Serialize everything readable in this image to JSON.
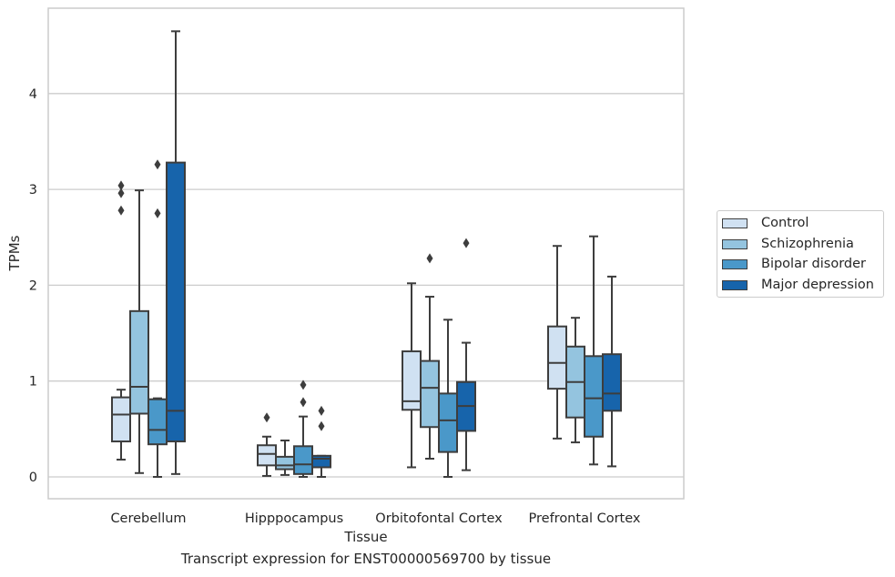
{
  "chart_data": {
    "type": "boxplot",
    "title": "",
    "caption": "Transcript expression for ENST00000569700 by tissue",
    "xlabel": "Tissue",
    "ylabel": "TPMs",
    "ylim": [
      -0.22,
      4.9
    ],
    "yticks": [
      0,
      1,
      2,
      3,
      4
    ],
    "grid": "horizontal",
    "legend_position": "right",
    "categories": [
      "Cerebellum",
      "Hipppocampus",
      "Orbitofontal Cortex",
      "Prefrontal Cortex"
    ],
    "series": [
      {
        "name": "Control",
        "color": "#d0e1f2",
        "boxes": [
          {
            "whislo": 0.18,
            "q1": 0.37,
            "med": 0.65,
            "q3": 0.83,
            "whishi": 0.91,
            "fliers": [
              2.78,
              2.96,
              3.04
            ]
          },
          {
            "whislo": 0.01,
            "q1": 0.12,
            "med": 0.24,
            "q3": 0.33,
            "whishi": 0.42,
            "fliers": [
              0.62
            ]
          },
          {
            "whislo": 0.1,
            "q1": 0.7,
            "med": 0.79,
            "q3": 1.31,
            "whishi": 2.02,
            "fliers": []
          },
          {
            "whislo": 0.4,
            "q1": 0.92,
            "med": 1.19,
            "q3": 1.57,
            "whishi": 2.41,
            "fliers": []
          }
        ]
      },
      {
        "name": "Schizophrenia",
        "color": "#94c4df",
        "boxes": [
          {
            "whislo": 0.04,
            "q1": 0.66,
            "med": 0.94,
            "q3": 1.73,
            "whishi": 2.99,
            "fliers": []
          },
          {
            "whislo": 0.02,
            "q1": 0.08,
            "med": 0.12,
            "q3": 0.21,
            "whishi": 0.38,
            "fliers": []
          },
          {
            "whislo": 0.19,
            "q1": 0.52,
            "med": 0.93,
            "q3": 1.21,
            "whishi": 1.88,
            "fliers": [
              2.28
            ]
          },
          {
            "whislo": 0.36,
            "q1": 0.62,
            "med": 0.99,
            "q3": 1.36,
            "whishi": 1.66,
            "fliers": []
          }
        ]
      },
      {
        "name": "Bipolar disorder",
        "color": "#4a98c9",
        "boxes": [
          {
            "whislo": 0.0,
            "q1": 0.34,
            "med": 0.49,
            "q3": 0.81,
            "whishi": 0.82,
            "fliers": [
              2.75,
              3.26
            ]
          },
          {
            "whislo": 0.0,
            "q1": 0.03,
            "med": 0.13,
            "q3": 0.32,
            "whishi": 0.63,
            "fliers": [
              0.78,
              0.96
            ]
          },
          {
            "whislo": 0.0,
            "q1": 0.26,
            "med": 0.59,
            "q3": 0.87,
            "whishi": 1.64,
            "fliers": []
          },
          {
            "whislo": 0.13,
            "q1": 0.42,
            "med": 0.82,
            "q3": 1.26,
            "whishi": 2.51,
            "fliers": []
          }
        ]
      },
      {
        "name": "Major depression",
        "color": "#1764ab",
        "boxes": [
          {
            "whislo": 0.03,
            "q1": 0.37,
            "med": 0.69,
            "q3": 3.28,
            "whishi": 4.65,
            "fliers": []
          },
          {
            "whislo": 0.0,
            "q1": 0.1,
            "med": 0.19,
            "q3": 0.22,
            "whishi": 0.22,
            "fliers": [
              0.53,
              0.69
            ]
          },
          {
            "whislo": 0.07,
            "q1": 0.48,
            "med": 0.74,
            "q3": 0.99,
            "whishi": 1.4,
            "fliers": [
              2.44
            ]
          },
          {
            "whislo": 0.11,
            "q1": 0.69,
            "med": 0.87,
            "q3": 1.28,
            "whishi": 2.09,
            "fliers": []
          }
        ]
      }
    ]
  }
}
